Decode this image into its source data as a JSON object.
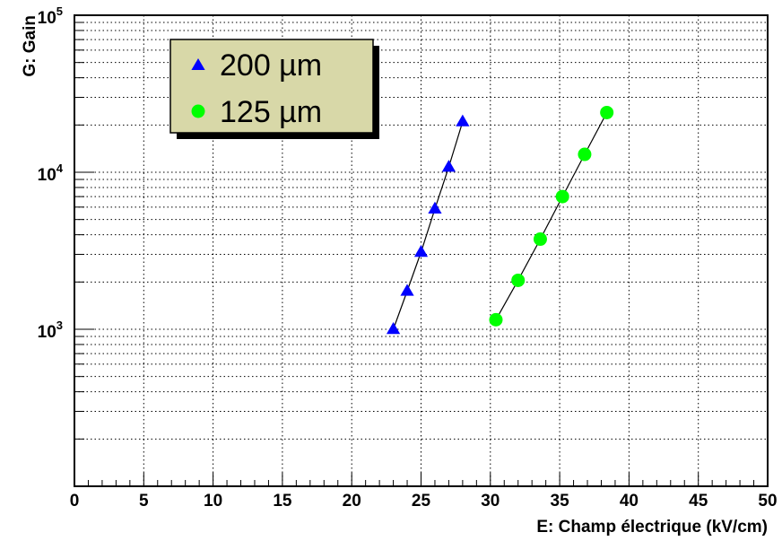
{
  "chart_data": {
    "type": "scatter",
    "title": "",
    "xlabel": "E: Champ électrique (kV/cm)",
    "ylabel": "G: Gain",
    "xlim": [
      0,
      50
    ],
    "ylim": [
      100,
      100000
    ],
    "yscale": "log",
    "grid": true,
    "legend_position": "top-left",
    "x_ticks": [
      "0",
      "5",
      "10",
      "15",
      "20",
      "25",
      "30",
      "35",
      "40",
      "45",
      "50"
    ],
    "y_ticks": [
      {
        "base": "10",
        "exp": "3"
      },
      {
        "base": "10",
        "exp": "4"
      },
      {
        "base": "10",
        "exp": "5"
      }
    ],
    "series": [
      {
        "name": "200 µm",
        "marker": "triangle",
        "color": "#0000ff",
        "x": [
          23,
          24,
          25,
          26,
          27,
          28
        ],
        "y": [
          1000,
          1750,
          3100,
          5850,
          10800,
          21000
        ]
      },
      {
        "name": "125 µm",
        "marker": "circle",
        "color": "#00ff00",
        "x": [
          30.4,
          32,
          33.6,
          35.2,
          36.8,
          38.4
        ],
        "y": [
          1150,
          2050,
          3750,
          7000,
          13000,
          24000
        ]
      }
    ]
  }
}
